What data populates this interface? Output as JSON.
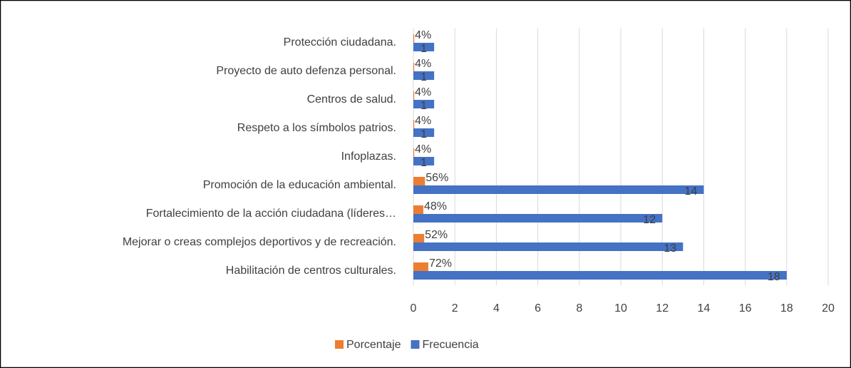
{
  "chart_data": {
    "type": "bar",
    "orientation": "horizontal",
    "categories": [
      "Habilitación de centros culturales.",
      "Mejorar o creas complejos deportivos y de recreación.",
      "Fortalecimiento de la acción ciudadana (líderes…",
      "Promoción de la educación ambiental.",
      "Infoplazas.",
      "Respeto a los símbolos patrios.",
      "Centros de salud.",
      "Proyecto de auto defenza personal.",
      "Protección ciudadana."
    ],
    "series": [
      {
        "name": "Porcentaje",
        "color": "#ed7d31",
        "values": [
          0.72,
          0.52,
          0.48,
          0.56,
          0.04,
          0.04,
          0.04,
          0.04,
          0.04
        ],
        "value_labels": [
          "72%",
          "52%",
          "48%",
          "56%",
          "4%",
          "4%",
          "4%",
          "4%",
          "4%"
        ]
      },
      {
        "name": "Frecuencia",
        "color": "#4472c4",
        "values": [
          18,
          13,
          12,
          14,
          1,
          1,
          1,
          1,
          1
        ]
      }
    ],
    "xlim": [
      0,
      20
    ],
    "xticks": [
      0,
      2,
      4,
      6,
      8,
      10,
      12,
      14,
      16,
      18,
      20
    ],
    "grid": true,
    "legend": "bottom"
  }
}
